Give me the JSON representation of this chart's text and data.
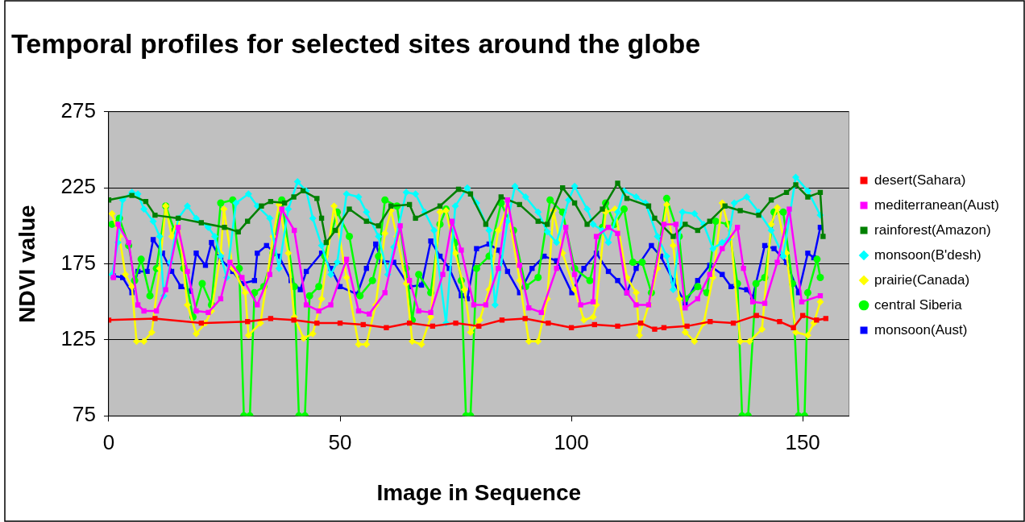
{
  "chart_data": {
    "type": "line",
    "title": "Temporal profiles for selected sites around the globe",
    "xlabel": "Image in Sequence",
    "ylabel": "NDVI value",
    "xlim": [
      0,
      160
    ],
    "xticks": [
      0,
      50,
      100,
      150
    ],
    "ylim": [
      75,
      275
    ],
    "yticks": [
      75,
      125,
      175,
      225,
      275
    ],
    "grid": "y",
    "legend": "right",
    "series": [
      {
        "name": "desert(Sahara)",
        "color": "#ff0000",
        "marker": "square",
        "x": [
          0,
          10,
          20,
          30,
          35,
          40,
          45,
          50,
          55,
          60,
          65,
          70,
          75,
          80,
          85,
          90,
          95,
          100,
          105,
          110,
          115,
          118,
          120,
          125,
          130,
          135,
          140,
          145,
          148,
          150,
          153,
          155
        ],
        "values": [
          138,
          139,
          136,
          137,
          139,
          138,
          136,
          136,
          135,
          133,
          136,
          134,
          136,
          134,
          138,
          139,
          136,
          133,
          135,
          134,
          136,
          132,
          133,
          134,
          137,
          136,
          141,
          137,
          133,
          141,
          138,
          139
        ]
      },
      {
        "name": "mediterranean(Aust)",
        "color": "#ff00ff",
        "marker": "square",
        "x": [
          1,
          2,
          4.3,
          6.3,
          7.6,
          10.3,
          12.3,
          15,
          17,
          18.9,
          21.5,
          24.2,
          26.2,
          28.8,
          32.1,
          34.8,
          37.4,
          40.1,
          42.7,
          45.4,
          48,
          51.4,
          54,
          56.3,
          59.7,
          63,
          65,
          67,
          69.6,
          72.2,
          74.2,
          76.2,
          78.9,
          81.5,
          84.2,
          86.2,
          88.8,
          90.8,
          93.5,
          96.8,
          98.8,
          100.7,
          102,
          104.7,
          105.4,
          108,
          110,
          112,
          114,
          116.7,
          120,
          122.6,
          124.6,
          127.3,
          129.9,
          132.6,
          135.9,
          137.2,
          139.2,
          141.8,
          144.5,
          147.1,
          149.8,
          153.8
        ],
        "values": [
          166,
          201,
          189,
          148,
          144,
          144,
          158,
          199,
          170,
          144,
          143,
          152,
          176,
          166,
          148,
          168,
          211,
          197,
          148,
          144,
          148,
          178,
          144,
          142,
          156,
          200,
          164,
          144,
          143,
          168,
          203,
          184,
          148,
          148,
          172,
          217,
          174,
          146,
          143,
          172,
          199,
          168,
          148,
          150,
          193,
          199,
          195,
          156,
          148,
          148,
          201,
          201,
          146,
          152,
          168,
          185,
          199,
          172,
          150,
          149,
          176,
          211,
          150,
          154
        ]
      },
      {
        "name": "rainforest(Amazon)",
        "color": "#008000",
        "marker": "square",
        "x": [
          0,
          5,
          8,
          10,
          15,
          20,
          25,
          28,
          30,
          33,
          35,
          38,
          40,
          42,
          45,
          46,
          47,
          49,
          52,
          55.7,
          58.3,
          61,
          65,
          66.3,
          71.6,
          75.6,
          78.2,
          81.5,
          84.8,
          88.8,
          92.8,
          94.8,
          98.1,
          100.7,
          103.4,
          106.7,
          110,
          112,
          116.7,
          118,
          122,
          124.6,
          127.3,
          129.9,
          133.2,
          136.5,
          140.5,
          143.2,
          146.5,
          148.5,
          151.1,
          153.8,
          154.4
        ],
        "values": [
          217,
          220,
          216,
          207,
          205,
          202,
          199,
          196,
          203,
          213,
          216,
          215,
          219,
          223,
          218,
          205,
          189,
          197,
          211,
          203,
          200,
          213,
          214,
          205,
          213,
          224,
          221,
          201,
          219,
          214,
          203,
          201,
          225,
          215,
          201,
          211,
          228,
          218,
          213,
          205,
          193,
          201,
          197,
          203,
          213,
          210,
          207,
          217,
          222,
          227,
          219,
          222,
          193
        ]
      },
      {
        "name": "monsoon(B'desh)",
        "color": "#00ffff",
        "marker": "diamond",
        "x": [
          0.7,
          2,
          3,
          5,
          6.3,
          7.6,
          9.6,
          11,
          11.9,
          13.3,
          15,
          17,
          18.9,
          21.5,
          22.9,
          24.2,
          25.5,
          27.5,
          30.2,
          32.1,
          34.8,
          36.8,
          38.8,
          40.8,
          42.7,
          44.1,
          46,
          48,
          49.4,
          51.4,
          54,
          55.7,
          58.3,
          60.3,
          61.6,
          64.3,
          66.3,
          68.3,
          70.3,
          72.9,
          74.9,
          77.5,
          79.5,
          82.2,
          83.5,
          86.2,
          87.8,
          90.1,
          92.8,
          94.8,
          96.8,
          99.4,
          100.7,
          103.4,
          104.7,
          106.7,
          108,
          110,
          111.4,
          114,
          116,
          118.6,
          120.6,
          122,
          124,
          126.6,
          128.6,
          130.6,
          132.6,
          133.9,
          135.2,
          137.9,
          140.5,
          143.2,
          145.8,
          148.5,
          151.1,
          153.8
        ],
        "values": [
          168,
          189,
          217,
          222,
          221,
          211,
          203,
          193,
          154,
          176,
          205,
          213,
          205,
          199,
          193,
          180,
          166,
          215,
          221,
          213,
          205,
          172,
          211,
          229,
          223,
          205,
          187,
          168,
          176,
          221,
          219,
          209,
          193,
          168,
          186,
          222,
          221,
          209,
          197,
          136,
          213,
          225,
          215,
          197,
          148,
          203,
          226,
          219,
          209,
          196,
          189,
          217,
          226,
          211,
          201,
          197,
          189,
          209,
          223,
          219,
          215,
          193,
          180,
          158,
          209,
          208,
          201,
          185,
          189,
          191,
          215,
          219,
          209,
          197,
          180,
          232,
          223,
          207
        ]
      },
      {
        "name": "prairie(Canada)",
        "color": "#ffff00",
        "marker": "diamond",
        "x": [
          0.7,
          2.3,
          3.6,
          5,
          6,
          7.6,
          9.3,
          11,
          12.3,
          13.6,
          15,
          17,
          18.9,
          20.9,
          22.2,
          24.2,
          24.9,
          26.8,
          29.5,
          30.2,
          32.8,
          35.5,
          36.8,
          38.8,
          40.1,
          42.1,
          44.1,
          46,
          48.7,
          51.4,
          54,
          55.7,
          57.7,
          59.7,
          61,
          62.3,
          64.3,
          65.6,
          67.6,
          69.6,
          71.6,
          72.9,
          74.9,
          76.9,
          78.2,
          80.2,
          82.2,
          84.2,
          86.2,
          88.8,
          90.8,
          92.8,
          94.8,
          96.1,
          98.1,
          100.7,
          102.7,
          104.7,
          105.4,
          107.4,
          109.4,
          112,
          114,
          114.7,
          116.7,
          118.6,
          120.6,
          122,
          123.3,
          124.6,
          126.6,
          128.6,
          130.6,
          132.6,
          134.5,
          136.5,
          138.5,
          141.2,
          143.2,
          144.5,
          146.5,
          148.5,
          151.1,
          152.4,
          153.8
        ],
        "values": [
          208,
          193,
          168,
          160,
          124,
          124,
          130,
          172,
          213,
          193,
          205,
          148,
          129,
          136,
          144,
          182,
          211,
          172,
          156,
          128,
          136,
          193,
          214,
          182,
          140,
          126,
          129,
          152,
          213,
          166,
          122,
          122,
          148,
          195,
          210,
          193,
          162,
          124,
          122,
          140,
          209,
          210,
          182,
          158,
          130,
          138,
          158,
          197,
          213,
          164,
          124,
          124,
          152,
          210,
          182,
          158,
          138,
          140,
          148,
          209,
          211,
          166,
          156,
          128,
          148,
          172,
          214,
          187,
          152,
          130,
          124,
          136,
          166,
          215,
          193,
          124,
          124,
          132,
          201,
          212,
          182,
          130,
          128,
          136,
          150
        ]
      },
      {
        "name": "central Siberia",
        "color": "#00ff00",
        "marker": "circle",
        "x": [
          0.7,
          2.3,
          4.3,
          5.6,
          7,
          8.9,
          10.3,
          12.3,
          14.2,
          16.2,
          18.2,
          20.2,
          22.2,
          24.2,
          26.8,
          28.2,
          29.2,
          30.5,
          31.5,
          33.5,
          35.5,
          37.4,
          40.1,
          41.1,
          42.4,
          43.4,
          45.4,
          46.7,
          49.4,
          52,
          54.3,
          57,
          58.3,
          59.7,
          62.3,
          64.3,
          65.6,
          67,
          69.6,
          71.6,
          72.9,
          74.9,
          76.2,
          77.2,
          78.2,
          79.5,
          82.2,
          84.8,
          87.5,
          90.1,
          92.8,
          95.4,
          98.1,
          100.7,
          104,
          106.7,
          107.4,
          109.4,
          111.4,
          113.3,
          115.3,
          117.3,
          120.6,
          123.3,
          124.6,
          127.3,
          129.3,
          131.2,
          133.9,
          135.9,
          136.9,
          138.2,
          139.9,
          141.8,
          143.8,
          145.8,
          147.8,
          149.1,
          150.4,
          151.1,
          153.1,
          153.8
        ],
        "values": [
          201,
          205,
          187,
          164,
          178,
          154,
          172,
          213,
          197,
          172,
          140,
          162,
          148,
          215,
          217,
          172,
          75,
          75,
          156,
          160,
          182,
          217,
          160,
          75,
          75,
          154,
          160,
          180,
          209,
          193,
          154,
          164,
          180,
          217,
          213,
          172,
          138,
          168,
          156,
          201,
          211,
          189,
          164,
          75,
          75,
          172,
          180,
          215,
          197,
          160,
          166,
          217,
          209,
          172,
          164,
          199,
          215,
          201,
          211,
          176,
          176,
          156,
          218,
          193,
          152,
          160,
          156,
          203,
          201,
          162,
          75,
          75,
          162,
          166,
          209,
          209,
          162,
          75,
          75,
          156,
          178,
          166
        ]
      },
      {
        "name": "monsoon(Aust)",
        "color": "#0000ff",
        "marker": "square",
        "x": [
          1,
          3,
          5,
          6.3,
          8.3,
          9.6,
          11.6,
          13.6,
          15.6,
          17.6,
          18.9,
          20.9,
          22.2,
          24.2,
          26.8,
          28.8,
          31.5,
          32.1,
          34.1,
          36.8,
          39.4,
          41.4,
          42.7,
          46,
          48,
          50,
          53.7,
          55.7,
          57.7,
          59,
          61.6,
          65,
          67.6,
          69.6,
          71.6,
          73.6,
          76.2,
          77.5,
          79.5,
          82.2,
          84.2,
          86.2,
          88.8,
          91.5,
          94.1,
          96.8,
          100.1,
          102.7,
          105.4,
          108,
          110,
          112,
          114,
          117.3,
          119.3,
          122,
          124.6,
          127.3,
          129.9,
          132.6,
          134.5,
          137.9,
          139.2,
          141.8,
          143.8,
          146.5,
          149.1,
          151.1,
          152.4,
          153.8
        ],
        "values": [
          167,
          166,
          156,
          170,
          170,
          191,
          182,
          170,
          160,
          157,
          182,
          174,
          189,
          178,
          170,
          162,
          164,
          182,
          187,
          180,
          164,
          158,
          170,
          182,
          172,
          160,
          155,
          172,
          188,
          177,
          176,
          160,
          161,
          190,
          180,
          172,
          154,
          152,
          185,
          188,
          184,
          170,
          156,
          172,
          180,
          177,
          156,
          172,
          182,
          170,
          164,
          156,
          172,
          187,
          180,
          164,
          149,
          164,
          174,
          168,
          160,
          158,
          153,
          187,
          185,
          176,
          156,
          182,
          179,
          199
        ]
      }
    ]
  }
}
